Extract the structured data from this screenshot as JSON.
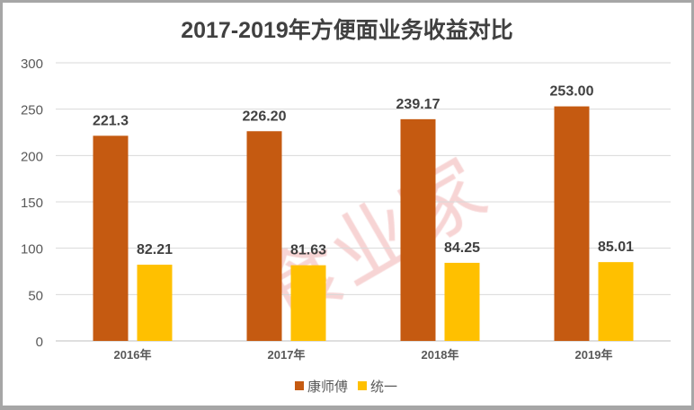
{
  "chart_data": {
    "type": "bar",
    "title": "2017-2019年方便面业务收益对比",
    "categories": [
      "2016年",
      "2017年",
      "2018年",
      "2019年"
    ],
    "series": [
      {
        "name": "康师傅",
        "values": [
          221.3,
          226.2,
          239.17,
          253.0
        ],
        "labels": [
          "221.3",
          "226.20",
          "239.17",
          "253.00"
        ],
        "color": "#c55a11"
      },
      {
        "name": "统一",
        "values": [
          82.21,
          81.63,
          84.25,
          85.01
        ],
        "labels": [
          "82.21",
          "81.63",
          "84.25",
          "85.01"
        ],
        "color": "#ffc000"
      }
    ],
    "ylim": [
      0,
      300
    ],
    "yticks": [
      "0",
      "50",
      "100",
      "150",
      "200",
      "250",
      "300"
    ],
    "grid": true,
    "legend": "bottom",
    "xlabel": "",
    "ylabel": ""
  },
  "watermark": "食业家"
}
